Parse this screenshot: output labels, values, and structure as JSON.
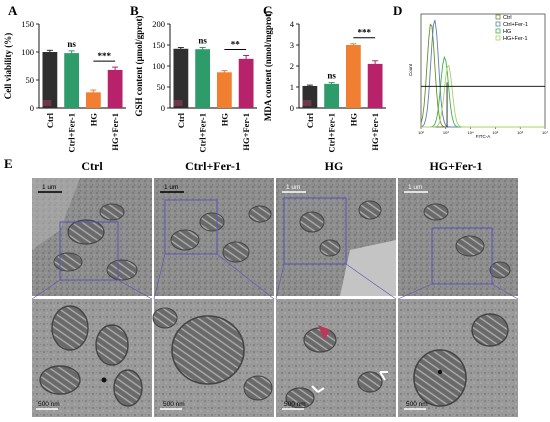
{
  "panel_letters": {
    "A": "A",
    "B": "B",
    "C": "C",
    "D": "D",
    "E": "E"
  },
  "colors": {
    "ctrl": "#2f2f2f",
    "ctrl_fer1": "#2e9c6a",
    "hg": "#f07f32",
    "hg_fer1": "#b8226a",
    "flow_ctrl": "#6b8e23",
    "flow_ctrl_fer1": "#5a7fb8",
    "flow_hg": "#39b54a",
    "flow_hg_fer1": "#a8d060",
    "gate": "#000000",
    "roi": "#5b55b8",
    "arrow": "#ffffff"
  },
  "chart_data": [
    {
      "id": "A",
      "type": "bar",
      "ylabel": "Cell viability (%)",
      "ylim": [
        0,
        150
      ],
      "yticks": [
        0,
        50,
        100,
        150
      ],
      "categories": [
        "Ctrl",
        "Ctrl+Fer-1",
        "HG",
        "HG+Fer-1"
      ],
      "values": [
        100,
        98,
        28,
        68
      ],
      "errors": [
        3,
        4,
        4,
        5
      ],
      "annotations": [
        {
          "text": "ns",
          "over": [
            1
          ]
        },
        {
          "text": "***",
          "over": [
            2,
            3
          ]
        }
      ]
    },
    {
      "id": "B",
      "type": "bar",
      "ylabel": "GSH content (µmol/gprot)",
      "ylim": [
        0,
        200
      ],
      "yticks": [
        0,
        50,
        100,
        150,
        200
      ],
      "categories": [
        "Ctrl",
        "Ctrl+Fer-1",
        "HG",
        "HG+Fer-1"
      ],
      "values": [
        141,
        140,
        85,
        117
      ],
      "errors": [
        3,
        4,
        4,
        8
      ],
      "annotations": [
        {
          "text": "ns",
          "over": [
            1
          ]
        },
        {
          "text": "**",
          "over": [
            2,
            3
          ]
        }
      ]
    },
    {
      "id": "C",
      "type": "bar",
      "ylabel": "MDA content (nmol/mgprot)",
      "ylim": [
        0,
        4
      ],
      "yticks": [
        0,
        1,
        2,
        3,
        4
      ],
      "categories": [
        "Ctrl",
        "Ctrl+Fer-1",
        "HG",
        "HG+Fer-1"
      ],
      "values": [
        1.05,
        1.15,
        3.0,
        2.1
      ],
      "errors": [
        0.04,
        0.06,
        0.06,
        0.15
      ],
      "annotations": [
        {
          "text": "ns",
          "over": [
            1
          ]
        },
        {
          "text": "***",
          "over": [
            2,
            3
          ]
        }
      ]
    },
    {
      "id": "D",
      "type": "line",
      "xlabel": "FITC-A",
      "ylabel": "Count",
      "xscale": "log",
      "xticks_text": [
        "10²",
        "10³",
        "10⁴",
        "10⁵",
        "10⁶",
        "10⁷"
      ],
      "series": [
        {
          "name": "Ctrl",
          "peak": 2.4,
          "height": 0.92
        },
        {
          "name": "Ctrl+Fer-1",
          "peak": 2.55,
          "height": 0.95
        },
        {
          "name": "HG",
          "peak": 2.95,
          "height": 0.62
        },
        {
          "name": "HG+Fer-1",
          "peak": 3.1,
          "height": 0.55
        }
      ],
      "gate_y_fraction": 0.36,
      "gate_x_mid": 3.05
    }
  ],
  "tem": {
    "columns": [
      "Ctrl",
      "Ctrl+Fer-1",
      "HG",
      "HG+Fer-1"
    ],
    "top_scalebar": "1 um",
    "bottom_scalebar": "500 nm"
  }
}
